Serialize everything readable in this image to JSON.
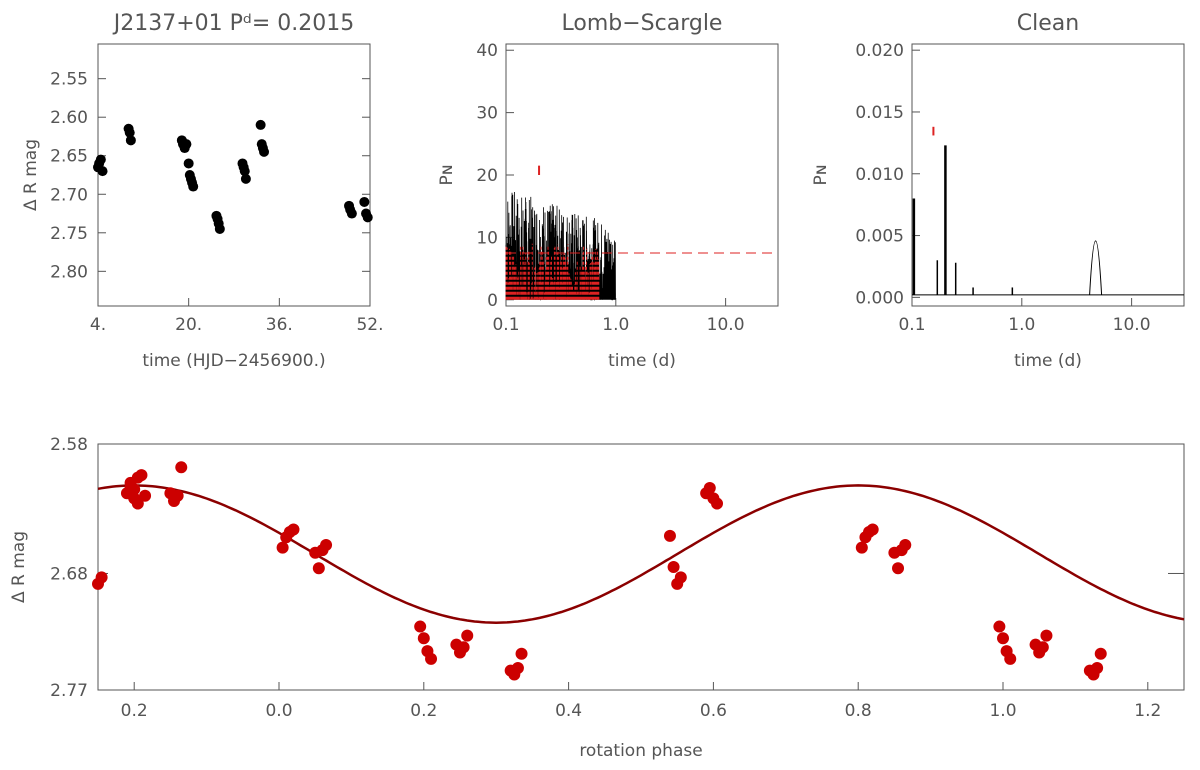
{
  "colors": {
    "axis": "#555555",
    "points_top": "#000000",
    "points_phase": "#cc0000",
    "fit": "#8b0000",
    "red": "#dd2222",
    "black_line": "#000000"
  },
  "chart_data": [
    {
      "id": "lightcurve",
      "type": "scatter",
      "title": "J2137+01  Pᵈ=  0.2015",
      "xlabel": "time (HJD−2456900.)",
      "ylabel": "Δ R mag",
      "xlim": [
        4,
        52
      ],
      "ylim": [
        2.845,
        2.505
      ],
      "xticks": [
        "4.",
        "20.",
        "36.",
        "52."
      ],
      "yticks": [
        "2.55",
        "2.60",
        "2.65",
        "2.70",
        "2.75",
        "2.80"
      ],
      "x": [
        4.0,
        4.2,
        4.5,
        4.8,
        9.4,
        9.6,
        9.8,
        18.8,
        19.0,
        19.3,
        19.6,
        20.0,
        20.2,
        20.4,
        20.6,
        20.8,
        24.9,
        25.1,
        25.3,
        25.5,
        29.5,
        29.7,
        29.9,
        30.1,
        32.7,
        32.9,
        33.1,
        33.3,
        48.3,
        48.5,
        48.8,
        51.0,
        51.3,
        51.6
      ],
      "y": [
        2.665,
        2.66,
        2.655,
        2.67,
        2.615,
        2.62,
        2.63,
        2.63,
        2.635,
        2.64,
        2.635,
        2.66,
        2.675,
        2.68,
        2.685,
        2.69,
        2.728,
        2.732,
        2.738,
        2.745,
        2.66,
        2.665,
        2.67,
        2.68,
        2.61,
        2.635,
        2.64,
        2.645,
        2.715,
        2.72,
        2.725,
        2.71,
        2.725,
        2.73
      ]
    },
    {
      "id": "lomb-scargle",
      "type": "line",
      "title": "Lomb−Scargle",
      "xlabel": "time (d)",
      "ylabel": "Pɴ",
      "xscale": "log",
      "xlim": [
        0.1,
        30
      ],
      "ylim": [
        -1,
        41
      ],
      "xticks": [
        "0.1",
        "1.0",
        "10.0"
      ],
      "yticks": [
        "0",
        "10",
        "20",
        "30",
        "40"
      ],
      "significance_level": 7.5,
      "window_peak_period": 0.2
    },
    {
      "id": "clean",
      "type": "line",
      "title": "Clean",
      "xlabel": "time (d)",
      "ylabel": "Pɴ",
      "xscale": "log",
      "xlim": [
        0.1,
        30
      ],
      "ylim": [
        -0.0007,
        0.0205
      ],
      "xticks": [
        "0.1",
        "1.0",
        "10.0"
      ],
      "yticks": [
        "0.000",
        "0.005",
        "0.010",
        "0.015",
        "0.020"
      ],
      "peaks": [
        {
          "x": 0.104,
          "y": 0.008
        },
        {
          "x": 0.2015,
          "y": 0.0123
        },
        {
          "x": 0.17,
          "y": 0.003
        },
        {
          "x": 0.25,
          "y": 0.0028
        },
        {
          "x": 0.36,
          "y": 0.0008
        },
        {
          "x": 0.82,
          "y": 0.0008
        },
        {
          "x": 4.7,
          "y": 0.0047
        }
      ],
      "marker_x": 0.2015
    },
    {
      "id": "phase",
      "type": "scatter",
      "xlabel": "rotation phase",
      "ylabel": "Δ R mag",
      "xlim": [
        -0.25,
        1.25
      ],
      "ylim": [
        2.77,
        2.58
      ],
      "xticks": [
        "0.2",
        "0.0",
        "0.2",
        "0.4",
        "0.6",
        "0.8",
        "1.0",
        "1.2"
      ],
      "xtick_values": [
        -0.2,
        0.0,
        0.2,
        0.4,
        0.6,
        0.8,
        1.0,
        1.2
      ],
      "yticks": [
        "2.58",
        "2.68",
        "2.77"
      ],
      "ytick_values": [
        2.58,
        2.68,
        2.77
      ],
      "fit": {
        "mean": 2.665,
        "amplitude": 0.053,
        "min_phase": 0.3
      },
      "phase": [
        -0.205,
        -0.2,
        -0.195,
        -0.19,
        -0.185,
        -0.15,
        -0.145,
        -0.14,
        -0.135,
        0.005,
        0.01,
        0.015,
        0.02,
        0.05,
        0.055,
        0.06,
        0.065,
        0.195,
        0.2,
        0.205,
        0.21,
        0.245,
        0.25,
        0.255,
        0.26,
        0.32,
        0.325,
        0.33,
        0.335,
        0.54,
        0.545,
        0.55,
        0.555,
        0.59,
        0.595,
        0.6,
        0.605
      ],
      "mag": [
        2.61,
        2.615,
        2.606,
        2.604,
        2.62,
        2.618,
        2.624,
        2.62,
        2.598,
        2.66,
        2.652,
        2.648,
        2.646,
        2.664,
        2.676,
        2.662,
        2.658,
        2.721,
        2.73,
        2.74,
        2.746,
        2.735,
        2.741,
        2.737,
        2.728,
        2.755,
        2.758,
        2.753,
        2.742,
        2.651,
        2.675,
        2.688,
        2.683,
        2.618,
        2.614,
        2.622,
        2.626
      ]
    }
  ]
}
